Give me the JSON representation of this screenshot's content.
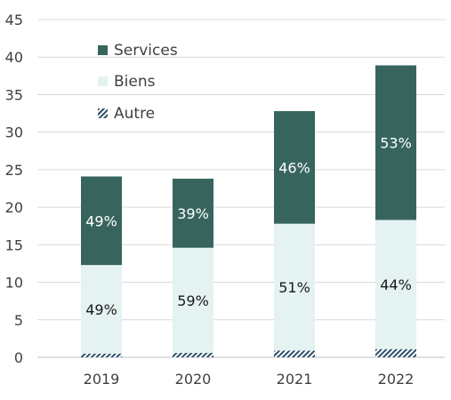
{
  "chart_data": {
    "type": "bar",
    "stacked": true,
    "categories": [
      "2019",
      "2020",
      "2021",
      "2022"
    ],
    "series": [
      {
        "name": "Autre",
        "values": [
          0.5,
          0.6,
          0.9,
          1.1
        ],
        "color": "#2c4f6b",
        "pattern": "diagonal-hatch"
      },
      {
        "name": "Biens",
        "values": [
          11.8,
          14.0,
          16.9,
          17.2
        ],
        "color": "#e4f3f1"
      },
      {
        "name": "Services",
        "values": [
          11.8,
          9.2,
          15.0,
          20.6
        ],
        "color": "#37655e"
      }
    ],
    "segment_labels": {
      "Biens": [
        "49%",
        "59%",
        "51%",
        "44%"
      ],
      "Services": [
        "49%",
        "39%",
        "46%",
        "53%"
      ]
    },
    "y_ticks": [
      "0",
      "5",
      "10",
      "15",
      "20",
      "25",
      "30",
      "35",
      "40",
      "45"
    ],
    "ylim": [
      0,
      45
    ],
    "grid": true,
    "legend": {
      "position": "top-left",
      "items": [
        "Services",
        "Biens",
        "Autre"
      ]
    },
    "title": "",
    "xlabel": "",
    "ylabel": ""
  }
}
